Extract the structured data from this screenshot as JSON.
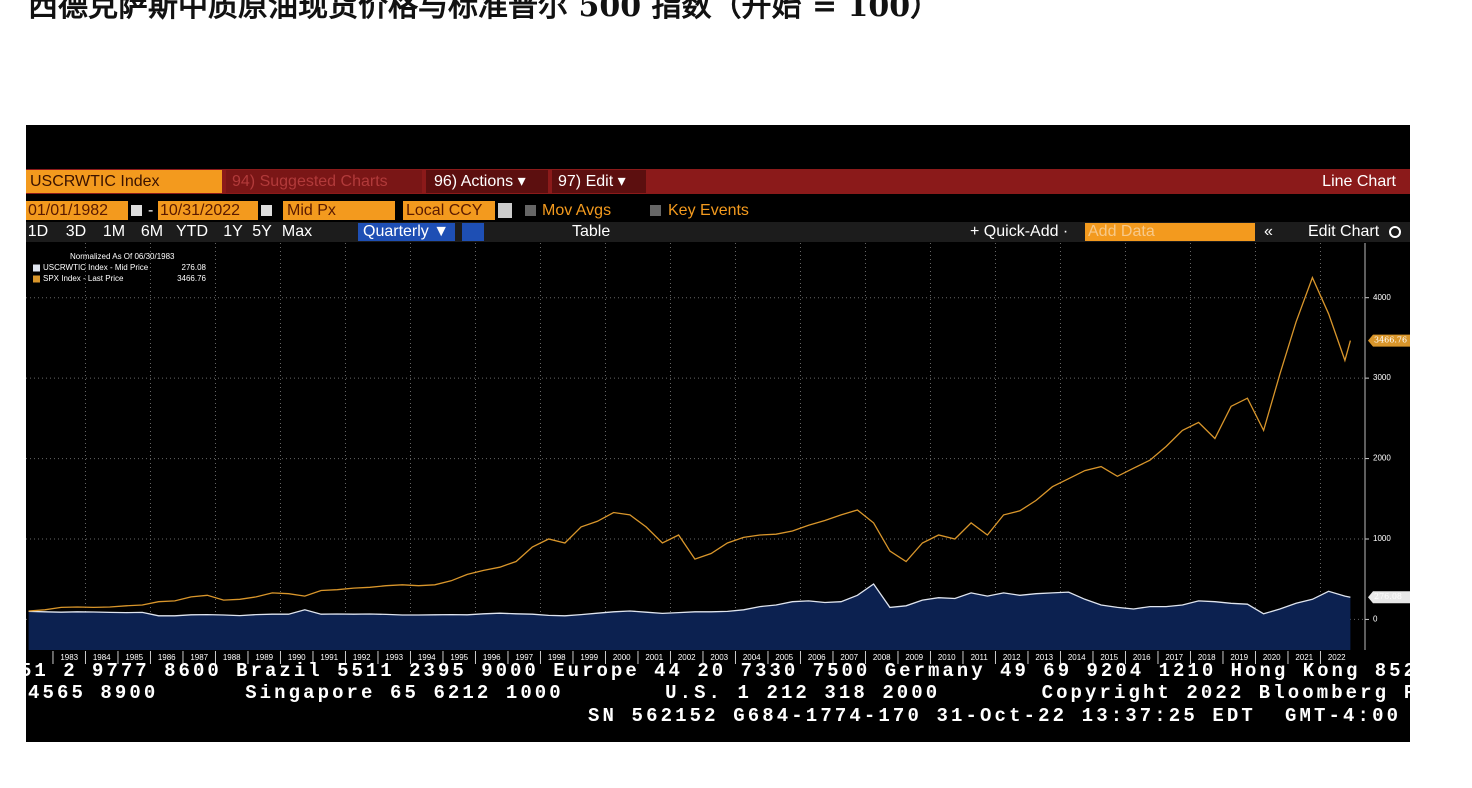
{
  "header": {
    "title": "西德克萨斯中质原油现货价格与标准普尔 500 指数（开始 = 100）"
  },
  "toolbar": {
    "security": "USCRWTIC Index",
    "suggested": "94) Suggested Charts",
    "actions": "96) Actions ▾",
    "edit": "97) Edit ▾",
    "chart_kind": "Line Chart",
    "start_date": "01/01/1982",
    "date_sep": "-",
    "end_date": "10/31/2022",
    "field": "Mid Px",
    "currency": "Local CCY",
    "mov_avgs": "Mov Avgs",
    "key_events": "Key Events",
    "ranges": [
      "1D",
      "3D",
      "1M",
      "6M",
      "YTD",
      "1Y",
      "5Y",
      "Max"
    ],
    "frequency": "Quarterly ▼",
    "table": "Table",
    "quick_add": "+ Quick-Add ·",
    "add_data": "Add Data",
    "collapse": "«",
    "edit_chart": "Edit Chart"
  },
  "chart_data": {
    "type": "line",
    "legend_title": "Normalized As Of 06/30/1983",
    "x": [
      1982.25,
      1982.75,
      1983.25,
      1983.75,
      1984.25,
      1984.75,
      1985.25,
      1985.75,
      1986.25,
      1986.75,
      1987.25,
      1987.75,
      1988.25,
      1988.75,
      1989.25,
      1989.75,
      1990.25,
      1990.75,
      1991.25,
      1991.75,
      1992.25,
      1992.75,
      1993.25,
      1993.75,
      1994.25,
      1994.75,
      1995.25,
      1995.75,
      1996.25,
      1996.75,
      1997.25,
      1997.75,
      1998.25,
      1998.75,
      1999.25,
      1999.75,
      2000.25,
      2000.75,
      2001.25,
      2001.75,
      2002.25,
      2002.75,
      2003.25,
      2003.75,
      2004.25,
      2004.75,
      2005.25,
      2005.75,
      2006.25,
      2006.75,
      2007.25,
      2007.75,
      2008.25,
      2008.75,
      2009.25,
      2009.75,
      2010.25,
      2010.75,
      2011.25,
      2011.75,
      2012.25,
      2012.75,
      2013.25,
      2013.75,
      2014.25,
      2014.75,
      2015.25,
      2015.75,
      2016.25,
      2016.75,
      2017.25,
      2017.75,
      2018.25,
      2018.75,
      2019.25,
      2019.75,
      2020.25,
      2020.75,
      2021.25,
      2021.75,
      2022.25,
      2022.75,
      2022.92
    ],
    "series": [
      {
        "name": "USCRWTIC Index - Mid Price",
        "color": "#dfe4ee",
        "fill": "#0c2150",
        "values": [
          100,
          95,
          90,
          95,
          92,
          88,
          85,
          88,
          45,
          45,
          58,
          60,
          55,
          48,
          60,
          65,
          65,
          120,
          65,
          68,
          65,
          68,
          62,
          55,
          55,
          58,
          60,
          58,
          70,
          78,
          70,
          65,
          50,
          45,
          60,
          78,
          95,
          105,
          90,
          75,
          85,
          95,
          95,
          100,
          120,
          160,
          180,
          220,
          230,
          210,
          220,
          300,
          440,
          150,
          170,
          240,
          270,
          260,
          330,
          290,
          330,
          300,
          320,
          330,
          340,
          250,
          180,
          150,
          130,
          160,
          160,
          180,
          230,
          220,
          200,
          190,
          70,
          130,
          200,
          250,
          350,
          290,
          276.08
        ]
      },
      {
        "name": "SPX Index - Last Price",
        "color": "#d9962b",
        "values": [
          105,
          120,
          150,
          155,
          150,
          155,
          170,
          180,
          220,
          230,
          280,
          300,
          240,
          250,
          280,
          330,
          320,
          290,
          360,
          370,
          390,
          400,
          420,
          430,
          420,
          430,
          480,
          560,
          610,
          650,
          720,
          900,
          1000,
          950,
          1150,
          1220,
          1330,
          1300,
          1150,
          950,
          1050,
          750,
          820,
          950,
          1020,
          1050,
          1060,
          1100,
          1170,
          1230,
          1300,
          1360,
          1200,
          850,
          720,
          950,
          1050,
          1000,
          1200,
          1050,
          1300,
          1350,
          1480,
          1650,
          1750,
          1850,
          1900,
          1780,
          1880,
          1980,
          2150,
          2350,
          2450,
          2250,
          2650,
          2750,
          2350,
          3050,
          3700,
          4250,
          3800,
          3220,
          3466.76
        ]
      }
    ],
    "xlim": [
      1982.17,
      2023.37
    ],
    "xticks": [
      1983,
      1984,
      1985,
      1986,
      1987,
      1988,
      1989,
      1990,
      1991,
      1992,
      1993,
      1994,
      1995,
      1996,
      1997,
      1998,
      1999,
      2000,
      2001,
      2002,
      2003,
      2004,
      2005,
      2006,
      2007,
      2008,
      2009,
      2010,
      2011,
      2012,
      2013,
      2014,
      2015,
      2016,
      2017,
      2018,
      2019,
      2020,
      2021,
      2022
    ],
    "ylim": [
      -380,
      4680
    ],
    "yticks": [
      0,
      1000,
      2000,
      3000,
      4000
    ],
    "grid": true
  },
  "footer": {
    "lines": [
      "51 2 9777 8600 Brazil 5511 2395 9000 Europe 44 20 7330 7500 Germany 49 69 9204 1210 Hong Kong 852",
      "4565 8900      Singapore 65 6212 1000       U.S. 1 212 318 2000       Copyright 2022 Bloomberg F",
      "SN 562152 G684-1774-170 31-Oct-22 13:37:25 EDT  GMT-4:00"
    ]
  }
}
